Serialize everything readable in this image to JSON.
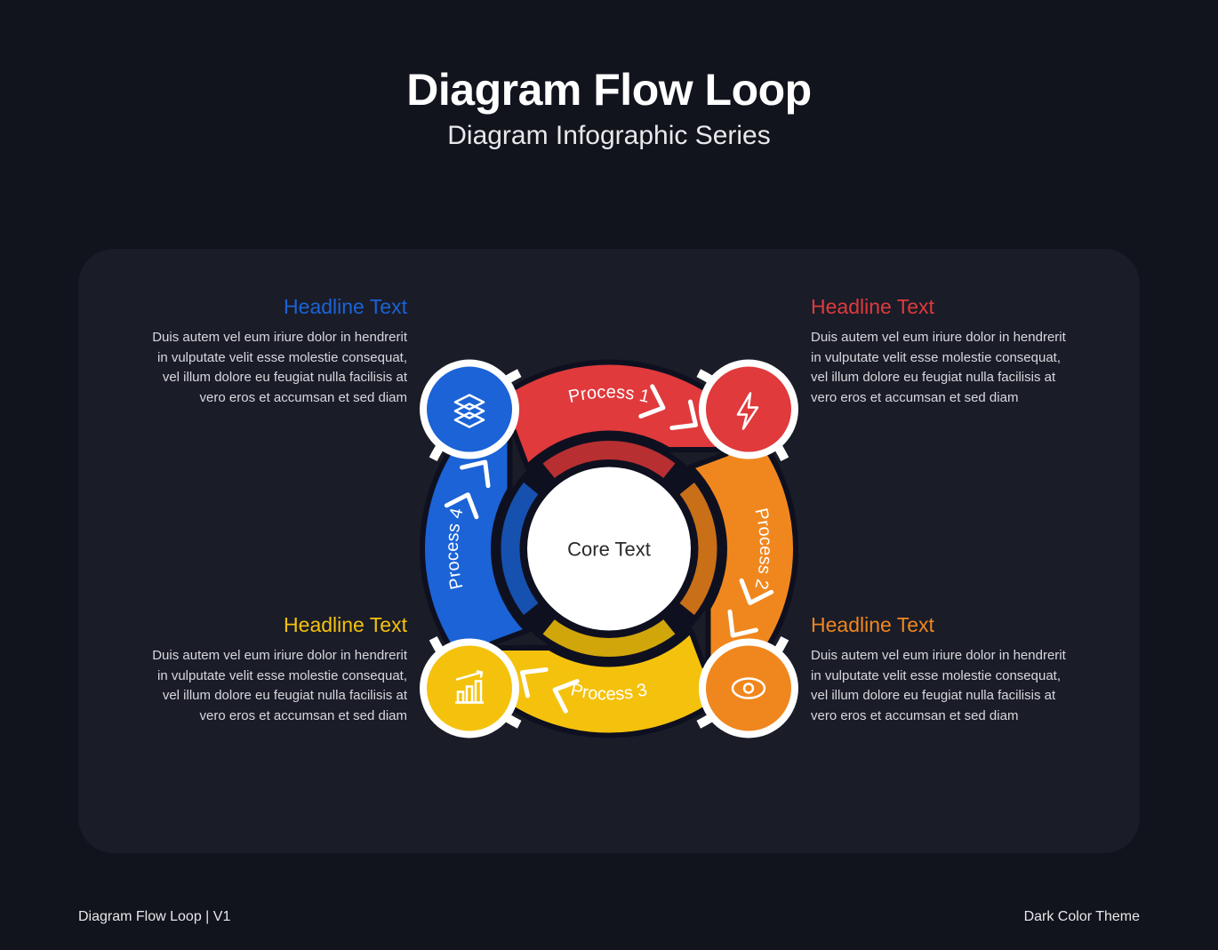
{
  "header": {
    "title": "Diagram Flow Loop",
    "subtitle": "Diagram Infographic Series"
  },
  "footer": {
    "left": "Diagram Flow Loop | V1",
    "right": "Dark Color Theme"
  },
  "colors": {
    "page_bg": "#11131d",
    "panel_bg": "#1a1c28",
    "outline": "#0e1020",
    "white": "#ffffff",
    "core_text": "#2a2a2a"
  },
  "core": {
    "label": "Core Text"
  },
  "segments": [
    {
      "id": "process1",
      "label": "Process 1",
      "color": "#e03a3c",
      "inner_color": "#b82f31",
      "headline": "Headline Text",
      "headline_color": "#e03a3c",
      "icon": "lightning",
      "body": "Duis autem vel eum iriure dolor in hendrerit in vulputate velit esse molestie consequat, vel illum dolore eu feugiat nulla facilisis at vero eros et accumsan et sed diam",
      "pos": "tr",
      "start_deg": -45,
      "end_deg": 45
    },
    {
      "id": "process2",
      "label": "Process 2",
      "color": "#f0871e",
      "inner_color": "#c86f18",
      "headline": "Headline Text",
      "headline_color": "#f0871e",
      "icon": "eye",
      "body": "Duis autem vel eum iriure dolor in hendrerit in vulputate velit esse molestie consequat, vel illum dolore eu feugiat nulla facilisis at vero eros et accumsan et sed diam",
      "pos": "br",
      "start_deg": 45,
      "end_deg": 135
    },
    {
      "id": "process3",
      "label": "Process 3",
      "color": "#f4c20d",
      "inner_color": "#d1a60b",
      "headline": "Headline Text",
      "headline_color": "#f4c20d",
      "icon": "chart",
      "body": "Duis autem vel eum iriure dolor in hendrerit in vulputate velit esse molestie consequat, vel illum dolore eu feugiat nulla facilisis at vero eros et accumsan et sed diam",
      "pos": "bl",
      "start_deg": 135,
      "end_deg": 225
    },
    {
      "id": "process4",
      "label": "Process 4",
      "color": "#1b63d6",
      "inner_color": "#1651b0",
      "headline": "Headline Text",
      "headline_color": "#1b63d6",
      "icon": "layers",
      "body": "Duis autem vel eum iriure dolor in hendrerit in vulputate velit esse molestie consequat, vel illum dolore eu feugiat nulla facilisis at vero eros et accumsan et sed diam",
      "pos": "tl",
      "start_deg": 225,
      "end_deg": 315
    }
  ],
  "geometry": {
    "svg_size": 560,
    "outer_r": 210,
    "inner_r": 130,
    "ring2_outer": 124,
    "ring2_inner": 98,
    "core_r": 92,
    "tick_r1": 222,
    "tick_r2": 242,
    "icon_circle_r": 48,
    "icon_white_r": 56,
    "icon_dist": 222,
    "chev_r": 170
  },
  "typography": {
    "title_size": 50,
    "subtitle_size": 30,
    "headline_size": 23,
    "body_size": 15,
    "segment_label_size": 20,
    "core_size": 22
  }
}
